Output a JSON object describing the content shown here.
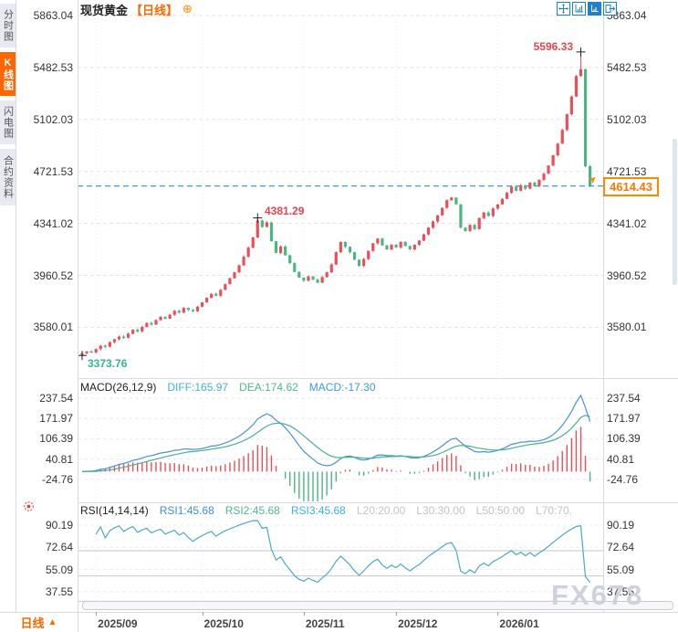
{
  "header": {
    "title": "现货黄金",
    "timeframe": "【日线】",
    "expand_icon": "⊕"
  },
  "toolbar": {
    "icons": [
      "pan",
      "scale-axis",
      "scale-axis-filled",
      "exit"
    ]
  },
  "sidebar": {
    "tabs": [
      {
        "id": "time-chart",
        "label": "分时图",
        "active": false
      },
      {
        "id": "kline-chart",
        "label": "K线图",
        "active": true
      },
      {
        "id": "lightning-chart",
        "label": "闪电图",
        "active": false
      },
      {
        "id": "contract-info",
        "label": "合约资料",
        "active": false
      }
    ]
  },
  "markers": {
    "high": "5596.33",
    "peak": "4381.29",
    "low": "3373.76",
    "current": "4614.43",
    "arrow_icon": "➤"
  },
  "macd_row": {
    "title": "MACD(26,12,9)",
    "diff": "DIFF:165.97",
    "dea": "DEA:174.62",
    "macd": "MACD:-17.30"
  },
  "rsi_row": {
    "title": "RSI(14,14,14)",
    "rsi1": "RSI1:45.68",
    "rsi2": "RSI2:45.68",
    "rsi3": "RSI3:45.68",
    "levels": [
      "L20:20.00",
      "L30:30.00",
      "L50:50.00",
      "L70:70."
    ]
  },
  "bottom": {
    "timeframe": "日线",
    "arrow": "▲"
  },
  "watermark": "FX678",
  "colors": {
    "up": "#ea4f58",
    "down": "#4cb584",
    "accent": "#ff6600",
    "diff_line": "#4a90d9",
    "dea_line": "#4cb08c",
    "rsi_line": "#4aa8cc",
    "current_line": "#2a8de4"
  },
  "chart_data": {
    "type": "candlestick",
    "title": "现货黄金 日线",
    "price_axis_ticks": [
      5863.04,
      5482.53,
      5102.03,
      4721.53,
      4341.02,
      3960.52,
      3580.01
    ],
    "x_ticks": [
      {
        "label": "2025/09",
        "index": 3
      },
      {
        "label": "2025/10",
        "index": 26
      },
      {
        "label": "2025/11",
        "index": 48
      },
      {
        "label": "2025/12",
        "index": 68
      },
      {
        "label": "2026/01",
        "index": 90
      }
    ],
    "closes": [
      3390,
      3404,
      3396,
      3421,
      3446,
      3438,
      3472,
      3492,
      3512,
      3504,
      3533,
      3562,
      3550,
      3583,
      3612,
      3600,
      3633,
      3656,
      3643,
      3672,
      3701,
      3688,
      3722,
      3708,
      3697,
      3731,
      3763,
      3796,
      3825,
      3811,
      3854,
      3896,
      3939,
      3983,
      4034,
      4097,
      4163,
      4238,
      4362,
      4315,
      4348,
      4210,
      4125,
      4172,
      4108,
      4050,
      3986,
      3944,
      3922,
      3953,
      3929,
      3907,
      3948,
      3983,
      4040,
      4130,
      4205,
      4170,
      4130,
      4075,
      4030,
      4080,
      4140,
      4195,
      4230,
      4180,
      4150,
      4185,
      4165,
      4205,
      4175,
      4150,
      4185,
      4215,
      4260,
      4310,
      4355,
      4400,
      4455,
      4510,
      4530,
      4480,
      4310,
      4285,
      4330,
      4300,
      4380,
      4420,
      4395,
      4450,
      4480,
      4520,
      4565,
      4610,
      4580,
      4620,
      4595,
      4640,
      4615,
      4660,
      4705,
      4765,
      4840,
      4925,
      5025,
      5140,
      5270,
      5420,
      5470,
      4760,
      4614.43
    ],
    "last_price": 4614.43,
    "high_marker": {
      "index": 108,
      "price": 5596.33
    },
    "peak_marker": {
      "index": 38,
      "price": 4381.29
    },
    "low_marker": {
      "index": 0,
      "price": 3373.76
    },
    "macd": {
      "params": [
        26,
        12,
        9
      ],
      "diff": 165.97,
      "dea": 174.62,
      "macd": -17.3,
      "axis_ticks": [
        237.54,
        171.97,
        106.39,
        40.81,
        -24.76
      ]
    },
    "rsi": {
      "params": [
        14,
        14,
        14
      ],
      "rsi1": 45.68,
      "rsi2": 45.68,
      "rsi3": 45.68,
      "levels": [
        20,
        30,
        50,
        70
      ],
      "axis_ticks": [
        90.19,
        72.64,
        55.09,
        37.55
      ]
    }
  }
}
